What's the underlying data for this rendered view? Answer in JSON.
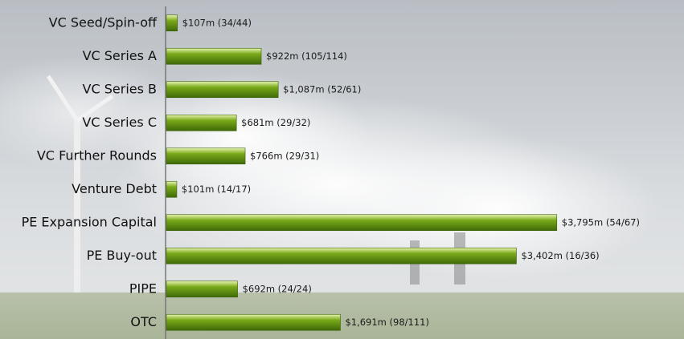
{
  "chart_data": {
    "type": "bar",
    "orientation": "horizontal",
    "categories": [
      "VC Seed/Spin-off",
      "VC Series A",
      "VC Series B",
      "VC Series C",
      "VC Further Rounds",
      "Venture Debt",
      "PE Expansion Capital",
      "PE Buy-out",
      "PIPE",
      "OTC"
    ],
    "values": [
      107,
      922,
      1087,
      681,
      766,
      101,
      3795,
      3402,
      692,
      1691
    ],
    "value_labels": [
      "$107m (34/44)",
      "$922m (105/114)",
      "$1,087m (52/61)",
      "$681m (29/32)",
      "$766m (29/31)",
      "$101m (14/17)",
      "$3,795m (54/67)",
      "$3,402m (16/36)",
      "$692m (24/24)",
      "$1,691m (98/111)"
    ],
    "color": "#7aaa1a",
    "xlim": [
      0,
      5000
    ]
  }
}
